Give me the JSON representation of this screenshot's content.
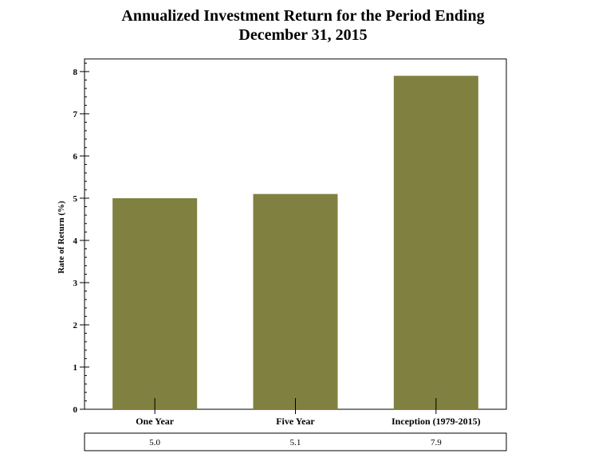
{
  "chart_data": {
    "type": "bar",
    "title_line1": "Annualized Investment Return for the Period Ending",
    "title_line2": "December 31, 2015",
    "ylabel": "Rate of Return (%)",
    "xlabel": "",
    "categories": [
      "One Year",
      "Five Year",
      "Inception (1979-2015)"
    ],
    "values": [
      5.0,
      5.1,
      7.9
    ],
    "value_labels": [
      "5.0",
      "5.1",
      "7.9"
    ],
    "ylim": [
      0,
      8.3
    ],
    "yticks": [
      0,
      1,
      2,
      3,
      4,
      5,
      6,
      7,
      8
    ],
    "ytick_labels": [
      "0",
      "1",
      "2",
      "3",
      "4",
      "5",
      "6",
      "7",
      "8"
    ],
    "bar_color": "#808040",
    "grid": false,
    "legend": "none"
  }
}
